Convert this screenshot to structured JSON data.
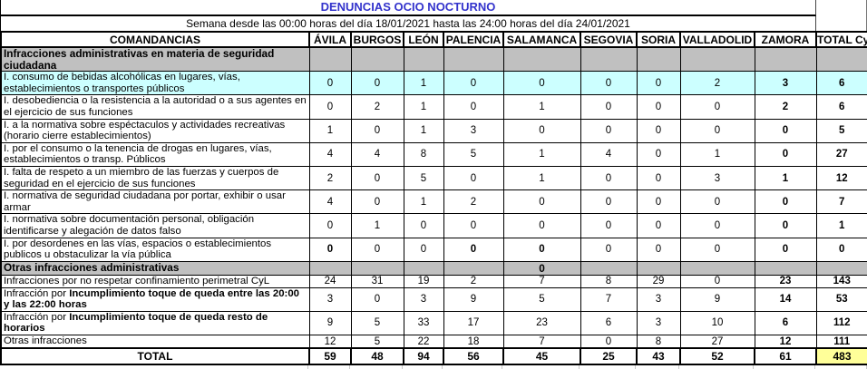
{
  "title": "DENUNCIAS OCIO NOCTURNO",
  "subtitle": "Semana desde las 00:00 horas del día 18/01/2021 hasta las 24:00 horas del día 24/01/2021",
  "colors": {
    "title_text": "#3333CC",
    "section_row_bg": "#C0C0C0",
    "highlight_row_bg": "#CCFFFF",
    "grand_total_bg": "#FFFF99"
  },
  "table": {
    "label_header": "COMANDANCIAS",
    "province_headers": [
      "ÁVILA",
      "BURGOS",
      "LEÓN",
      "PALENCIA",
      "SALAMANCA",
      "SEGOVIA",
      "SORIA",
      "VALLADOLID",
      "ZAMORA",
      "TOTAL CyL"
    ],
    "rows": [
      {
        "type": "section",
        "label": "Infracciones administrativas en materia de seguridad ciudadana",
        "values": [
          "",
          "",
          "",
          "",
          "",
          "",
          "",
          "",
          "",
          ""
        ],
        "bold_cols": []
      },
      {
        "type": "data",
        "bg": "cyan",
        "label": "I. consumo de bebidas alcohólicas en lugares, vías, establecimientos o transportes públicos",
        "values": [
          0,
          0,
          1,
          0,
          0,
          0,
          0,
          2,
          3,
          6
        ],
        "bold_cols": [
          8,
          9
        ]
      },
      {
        "type": "data",
        "label": "I. desobediencia o la resistencia a la autoridad o a sus agentes en el ejercicio de sus funciones",
        "values": [
          0,
          2,
          1,
          0,
          1,
          0,
          0,
          0,
          2,
          6
        ],
        "bold_cols": [
          8,
          9
        ]
      },
      {
        "type": "data",
        "label": "I. a la normativa sobre espéctaculos y actividades recreativas (horario cierre establecimientos)",
        "values": [
          1,
          0,
          1,
          3,
          0,
          0,
          0,
          0,
          0,
          5
        ],
        "bold_cols": [
          8,
          9
        ]
      },
      {
        "type": "data",
        "label": "I. por el consumo o la tenencia de drogas en lugares, vías, establecimientos o transp. Públicos",
        "values": [
          4,
          4,
          8,
          5,
          1,
          4,
          0,
          1,
          0,
          27
        ],
        "bold_cols": [
          8,
          9
        ]
      },
      {
        "type": "data",
        "label": "I. falta de respeto a un miembro de las fuerzas y cuerpos de seguridad en el ejercicio de sus funciones",
        "values": [
          2,
          0,
          5,
          0,
          1,
          0,
          0,
          3,
          1,
          12
        ],
        "bold_cols": [
          8,
          9
        ]
      },
      {
        "type": "data",
        "oneline": true,
        "label": "I. normativa de seguridad ciudadana por portar, exhibir o usar armar",
        "values": [
          4,
          0,
          1,
          2,
          0,
          0,
          0,
          0,
          0,
          7
        ],
        "bold_cols": [
          8,
          9
        ]
      },
      {
        "type": "data",
        "label": "I. normativa sobre documentación personal, obligación identificarse y alegación de datos falso",
        "values": [
          0,
          1,
          0,
          0,
          0,
          0,
          0,
          0,
          0,
          1
        ],
        "bold_cols": [
          8,
          9
        ]
      },
      {
        "type": "data",
        "label": "I. por desordenes en las vías, espacios o establecimientos publicos u obstaculizar la vía pública",
        "values": [
          0,
          0,
          0,
          0,
          0,
          0,
          0,
          0,
          0,
          0
        ],
        "bold_cols": [
          0,
          3,
          4,
          8,
          9
        ]
      },
      {
        "type": "section",
        "indent": true,
        "label": "Otras infracciones administrativas",
        "values": [
          "",
          "",
          "",
          "",
          "0",
          "",
          "",
          "",
          "",
          ""
        ],
        "bold_cols": []
      },
      {
        "type": "data",
        "indent": true,
        "oneline": true,
        "label": "Infracciones por no respetar confinamiento perimetral CyL",
        "values": [
          24,
          31,
          19,
          2,
          7,
          8,
          29,
          0,
          23,
          143
        ],
        "bold_cols": [
          8,
          9
        ]
      },
      {
        "type": "data",
        "indent": true,
        "label_prefix": "Infracción por ",
        "label_bold": "Incumplimiento toque de queda entre las 20:00 y las 22:00 horas",
        "values": [
          3,
          0,
          3,
          9,
          5,
          7,
          3,
          9,
          14,
          53
        ],
        "bold_cols": [
          8,
          9
        ]
      },
      {
        "type": "data",
        "indent": true,
        "label_prefix": "Infracción por ",
        "label_bold": "Incumplimiento toque de queda resto de horarios",
        "values": [
          9,
          5,
          33,
          17,
          23,
          6,
          3,
          10,
          6,
          112
        ],
        "bold_cols": [
          8,
          9
        ]
      },
      {
        "type": "data",
        "indent": true,
        "oneline": true,
        "label": "Otras infracciones",
        "values": [
          12,
          5,
          22,
          18,
          7,
          0,
          8,
          27,
          12,
          111
        ],
        "bold_cols": [
          8,
          9
        ]
      },
      {
        "type": "total",
        "label": "TOTAL",
        "values": [
          59,
          48,
          94,
          56,
          45,
          25,
          43,
          52,
          61,
          483
        ],
        "bold_cols": [
          1,
          2,
          3,
          4,
          5,
          6,
          7,
          8,
          9
        ]
      }
    ]
  }
}
